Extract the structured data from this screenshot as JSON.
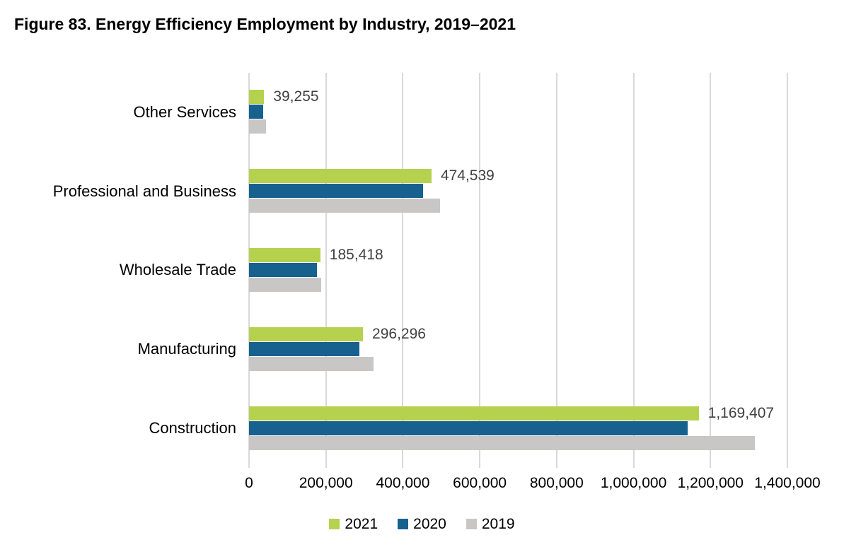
{
  "title": "Figure 83. Energy Efficiency Employment by Industry, 2019–2021",
  "chart_data": {
    "type": "bar",
    "orientation": "horizontal",
    "title": "Figure 83. Energy Efficiency Employment by Industry, 2019–2021",
    "categories": [
      "Other Services",
      "Professional and Business",
      "Wholesale Trade",
      "Manufacturing",
      "Construction"
    ],
    "series": [
      {
        "name": "2021",
        "color": "#b5d14d",
        "values": [
          39255,
          474539,
          185418,
          296296,
          1169407
        ],
        "data_labels": [
          "39,255",
          "474,539",
          "185,418",
          "296,296",
          "1,169,407"
        ]
      },
      {
        "name": "2020",
        "color": "#17618f",
        "values": [
          36500,
          452000,
          177000,
          287000,
          1140000
        ],
        "data_labels": null
      },
      {
        "name": "2019",
        "color": "#c8c7c5",
        "values": [
          45000,
          497000,
          188000,
          324000,
          1315000
        ],
        "data_labels": null
      }
    ],
    "xlim": [
      0,
      1400000
    ],
    "x_ticks": [
      0,
      200000,
      400000,
      600000,
      800000,
      1000000,
      1200000,
      1400000
    ],
    "x_tick_labels": [
      "0",
      "200,000",
      "400,000",
      "600,000",
      "800,000",
      "1,000,000",
      "1,200,000",
      "1,400,000"
    ],
    "xlabel": "",
    "ylabel": "",
    "grid": "vertical-only",
    "gridline_color": "#d9d9d9",
    "legend_position": "bottom",
    "legend": [
      "2021",
      "2020",
      "2019"
    ],
    "value_label_color": "#404040",
    "background_color": "#ffffff"
  }
}
